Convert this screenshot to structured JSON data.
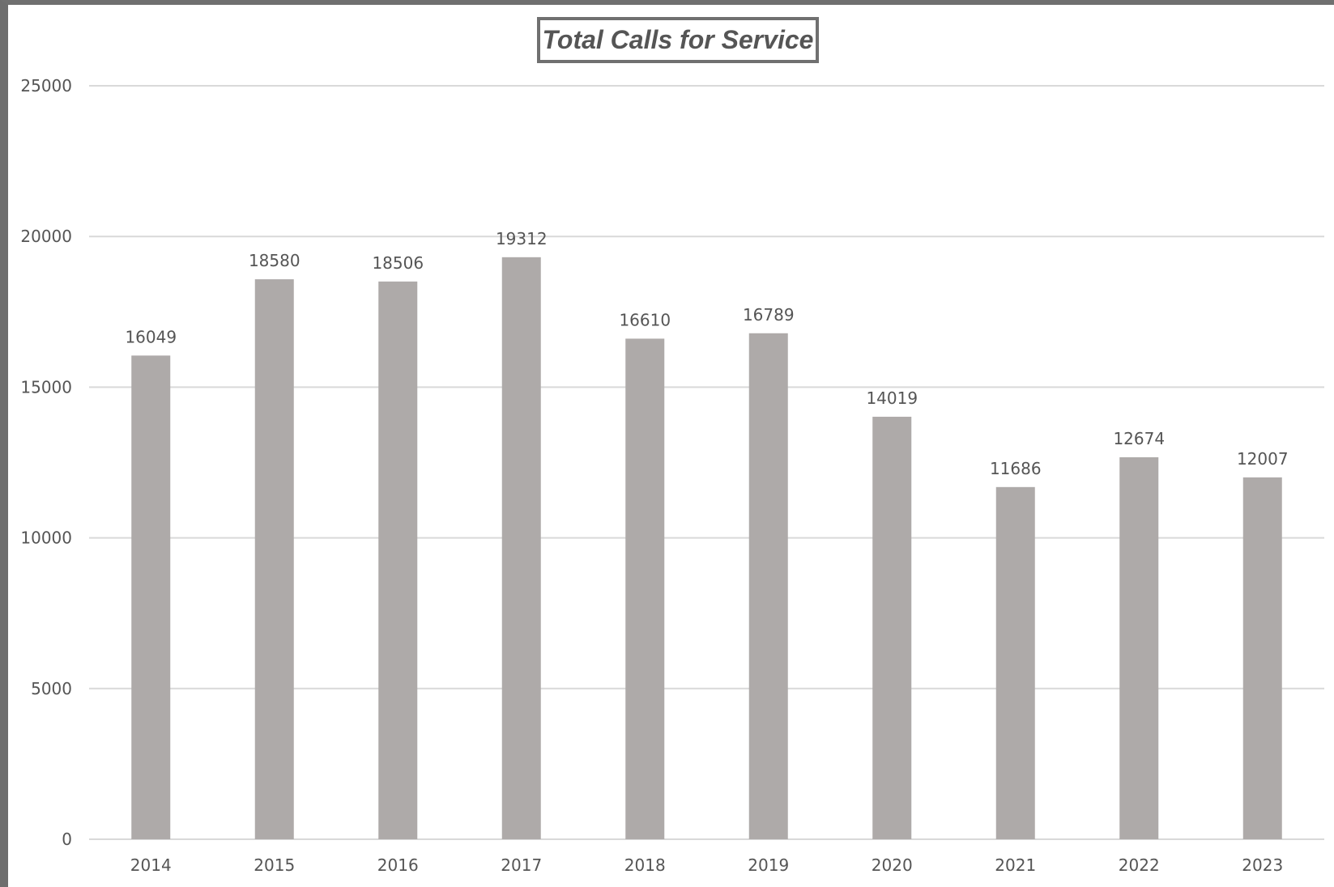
{
  "chart_data": {
    "type": "bar",
    "title": "Total Calls for Service",
    "categories": [
      "2014",
      "2015",
      "2016",
      "2017",
      "2018",
      "2019",
      "2020",
      "2021",
      "2022",
      "2023"
    ],
    "values": [
      16049,
      18580,
      18506,
      19312,
      16610,
      16789,
      14019,
      11686,
      12674,
      12007
    ],
    "ylim": [
      0,
      25000
    ],
    "yticks": [
      0,
      5000,
      10000,
      15000,
      20000,
      25000
    ],
    "xlabel": "",
    "ylabel": "",
    "grid": true,
    "legend": "none",
    "data_labels": true,
    "colors": {
      "bar": "#aeaaa9",
      "grid": "#d9d9d9",
      "text": "#555555",
      "frame": "#707070"
    }
  }
}
